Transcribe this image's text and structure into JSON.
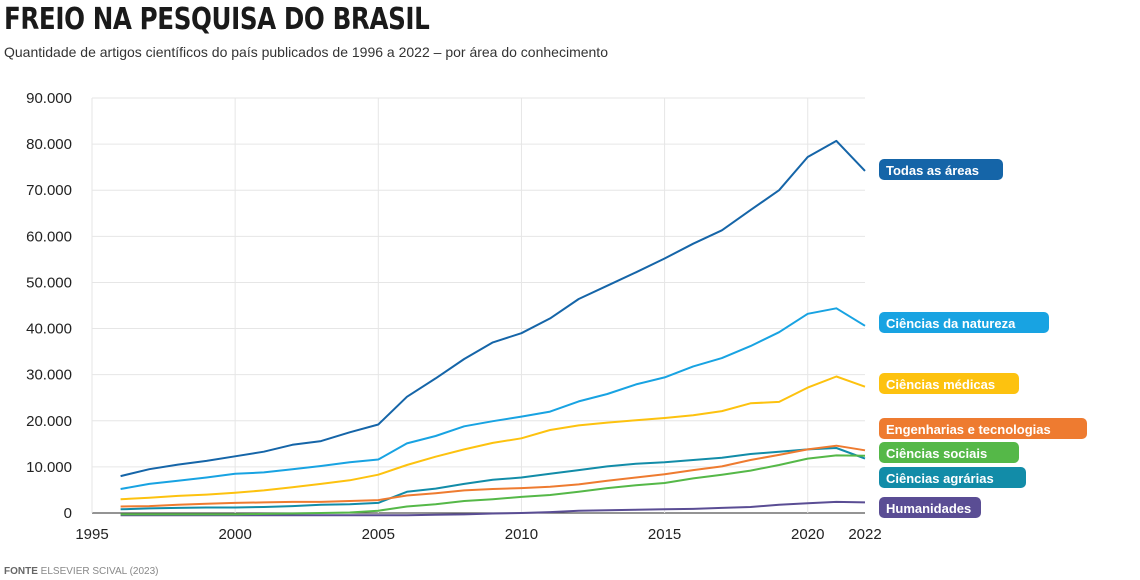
{
  "header": {
    "title": "FREIO NA PESQUISA DO BRASIL",
    "subtitle": "Quantidade de artigos científicos do país publicados de 1996 a 2022 – por área do conhecimento"
  },
  "footer": {
    "source_label": "FONTE",
    "source_text": "ELSEVIER SCIVAL (2023)"
  },
  "chart_data": {
    "type": "line",
    "title": "FREIO NA PESQUISA DO BRASIL",
    "subtitle": "Quantidade de artigos científicos do país publicados de 1996 a 2022 – por área do conhecimento",
    "xlabel": "",
    "ylabel": "",
    "xlim": [
      1995,
      2022
    ],
    "ylim": [
      0,
      90000
    ],
    "x_ticks": [
      1995,
      2000,
      2005,
      2010,
      2015,
      2020,
      2022
    ],
    "y_ticks": [
      0,
      10000,
      20000,
      30000,
      40000,
      50000,
      60000,
      70000,
      80000,
      90000
    ],
    "y_tick_labels": [
      "0",
      "10.000",
      "20.000",
      "30.000",
      "40.000",
      "50.000",
      "60.000",
      "70.000",
      "80.000",
      "90.000"
    ],
    "grid": true,
    "legend": "right, labels at line ends",
    "x": [
      1996,
      1997,
      1998,
      1999,
      2000,
      2001,
      2002,
      2003,
      2004,
      2005,
      2006,
      2007,
      2008,
      2009,
      2010,
      2011,
      2012,
      2013,
      2014,
      2015,
      2016,
      2017,
      2018,
      2019,
      2020,
      2021,
      2022
    ],
    "series": [
      {
        "name": "Todas as áreas",
        "color": "#1565a8",
        "values": [
          8000,
          9500,
          10500,
          11300,
          12300,
          13300,
          14800,
          15600,
          17500,
          19200,
          25200,
          29200,
          33400,
          37000,
          39000,
          42200,
          46400,
          49300,
          52200,
          55200,
          58400,
          61300,
          65700,
          70000,
          77200,
          80700,
          74200
        ]
      },
      {
        "name": "Ciências da natureza",
        "color": "#18a3e2",
        "values": [
          5200,
          6300,
          7000,
          7700,
          8500,
          8800,
          9500,
          10200,
          11000,
          11600,
          15100,
          16700,
          18800,
          19900,
          20900,
          22000,
          24200,
          25800,
          27900,
          29400,
          31800,
          33600,
          36200,
          39200,
          43200,
          44400,
          40600
        ]
      },
      {
        "name": "Ciências médicas",
        "color": "#fdc20f",
        "values": [
          3000,
          3300,
          3700,
          4000,
          4400,
          4900,
          5600,
          6300,
          7100,
          8300,
          10400,
          12200,
          13800,
          15200,
          16200,
          18000,
          19000,
          19600,
          20100,
          20600,
          21200,
          22100,
          23800,
          24100,
          27200,
          29600,
          27400
        ]
      },
      {
        "name": "Engenharias e tecnologias",
        "color": "#ee7b30",
        "values": [
          1400,
          1500,
          1800,
          2000,
          2200,
          2300,
          2400,
          2400,
          2600,
          2800,
          3800,
          4300,
          4900,
          5200,
          5400,
          5700,
          6200,
          7000,
          7700,
          8400,
          9300,
          10100,
          11500,
          12600,
          13800,
          14600,
          13600
        ]
      },
      {
        "name": "Ciências sociais",
        "color": "#55b848",
        "values": [
          -300,
          -300,
          -300,
          -300,
          -300,
          -200,
          -100,
          0,
          100,
          500,
          1400,
          1900,
          2600,
          3000,
          3500,
          3900,
          4600,
          5400,
          6000,
          6500,
          7500,
          8300,
          9200,
          10400,
          11800,
          12500,
          12400
        ]
      },
      {
        "name": "Ciências agrárias",
        "color": "#128ca8",
        "values": [
          800,
          1000,
          1100,
          1200,
          1200,
          1300,
          1500,
          1800,
          1900,
          2200,
          4600,
          5300,
          6300,
          7200,
          7700,
          8500,
          9300,
          10100,
          10700,
          11000,
          11500,
          12000,
          12800,
          13300,
          13800,
          14100,
          11800
        ]
      },
      {
        "name": "Humanidades",
        "color": "#5a4d94",
        "values": [
          -500,
          -500,
          -500,
          -500,
          -500,
          -500,
          -500,
          -500,
          -500,
          -500,
          -500,
          -400,
          -300,
          -100,
          0,
          200,
          500,
          600,
          700,
          800,
          900,
          1100,
          1300,
          1800,
          2100,
          2400,
          2300
        ]
      }
    ],
    "labels": [
      {
        "text": "Todas as áreas",
        "color": "#1565a8"
      },
      {
        "text": "Ciências da natureza",
        "color": "#18a3e2"
      },
      {
        "text": "Ciências médicas",
        "color": "#fdc20f"
      },
      {
        "text": "Engenharias e tecnologias",
        "color": "#ee7b30"
      },
      {
        "text": "Ciências sociais",
        "color": "#55b848"
      },
      {
        "text": "Ciências agrárias",
        "color": "#128ca8"
      },
      {
        "text": "Humanidades",
        "color": "#5a4d94"
      }
    ]
  }
}
